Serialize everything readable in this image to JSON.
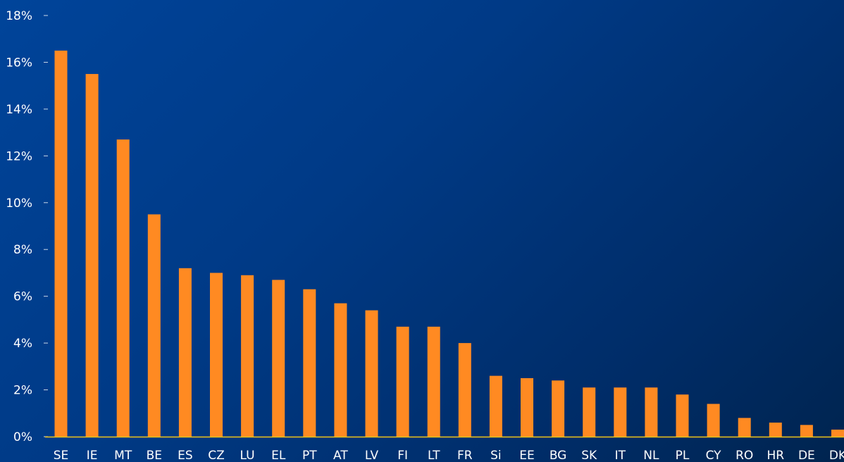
{
  "chart_data": {
    "type": "bar",
    "title": "",
    "xlabel": "",
    "ylabel": "",
    "categories": [
      "SE",
      "IE",
      "MT",
      "BE",
      "ES",
      "CZ",
      "LU",
      "EL",
      "PT",
      "AT",
      "LV",
      "FI",
      "LT",
      "FR",
      "Si",
      "EE",
      "BG",
      "SK",
      "IT",
      "NL",
      "PL",
      "CY",
      "RO",
      "HR",
      "DE",
      "DK"
    ],
    "values": [
      16.5,
      15.5,
      12.7,
      9.5,
      7.2,
      7.0,
      6.9,
      6.7,
      6.3,
      5.7,
      5.4,
      4.7,
      4.7,
      4.0,
      2.6,
      2.5,
      2.4,
      2.1,
      2.1,
      2.1,
      1.8,
      1.4,
      0.8,
      0.6,
      0.5,
      0.3
    ],
    "ylim": [
      0,
      18
    ],
    "y_ticks": [
      "0%",
      "2%",
      "4%",
      "6%",
      "8%",
      "10%",
      "12%",
      "14%",
      "16%",
      "18%"
    ],
    "grid": false,
    "colors": {
      "bar": "#ff8a22",
      "axis": "#f0c419",
      "text": "#ffffff",
      "background": "#003a86"
    }
  }
}
